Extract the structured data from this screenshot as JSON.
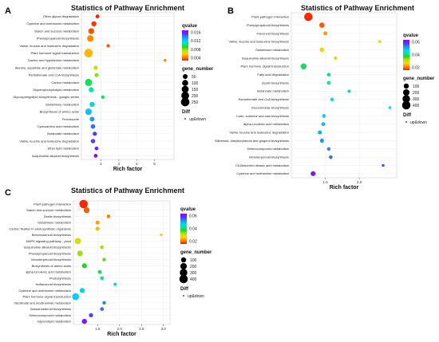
{
  "chart_data": [
    {
      "panel_label": "A",
      "type": "scatter",
      "title": "Statistics of Pathway Enrichment",
      "xlabel": "Rich factor",
      "ylabel": "",
      "x_ticks": [
        "2",
        "3",
        "4",
        "5"
      ],
      "xlim": [
        0.9,
        6.1
      ],
      "qvalue_title": "qvalue",
      "qvalue_range": [
        0.001,
        0.017
      ],
      "qvalue_ticks": [
        "0.016",
        "0.012",
        "0.008",
        "0.004"
      ],
      "size_title": "gene_number",
      "size_range": [
        0,
        260
      ],
      "size_legend": [
        "50",
        "100",
        "150",
        "200",
        "250"
      ],
      "diff_title": "Diff",
      "diff_label": "up&down",
      "categories": [
        "Other glycan degradation",
        "Cysteine and methionine metabolism",
        "Starch and sucrose metabolism",
        "Phenylpropanoid biosynthesis",
        "Valine, leucine and isoleucine degradation",
        "Plant hormone signal transduction",
        "Taurine and hypotaurine metabolism",
        "Alanine, aspartate and glutamate metabolism",
        "Pantothenate and CoA biosynthesis",
        "Carbon metabolism",
        "Glycerophospholipid metabolism",
        "Glycosphingolipid biosynthesis - ganglio series",
        "Glutathione metabolism",
        "Biosynthesis of amino acids",
        "Peroxisome",
        "Cyanoamino acid metabolism",
        "Butanoate metabolism",
        "Valine, leucine and isoleucine degradation",
        "Ether lipid metabolism",
        "Isoquinoline alkaloid biosynthesis"
      ],
      "points": [
        {
          "x": 1.8,
          "size": 20,
          "q": 0.001
        },
        {
          "x": 1.6,
          "size": 60,
          "q": 0.0015
        },
        {
          "x": 1.45,
          "size": 90,
          "q": 0.002
        },
        {
          "x": 1.4,
          "size": 120,
          "q": 0.003
        },
        {
          "x": 2.4,
          "size": 10,
          "q": 0.002
        },
        {
          "x": 1.3,
          "size": 250,
          "q": 0.004
        },
        {
          "x": 5.6,
          "size": 5,
          "q": 0.003
        },
        {
          "x": 1.7,
          "size": 30,
          "q": 0.006
        },
        {
          "x": 1.75,
          "size": 25,
          "q": 0.007
        },
        {
          "x": 1.3,
          "size": 160,
          "q": 0.009
        },
        {
          "x": 1.45,
          "size": 50,
          "q": 0.01
        },
        {
          "x": 2.1,
          "size": 15,
          "q": 0.009
        },
        {
          "x": 1.5,
          "size": 60,
          "q": 0.011
        },
        {
          "x": 1.3,
          "size": 120,
          "q": 0.012
        },
        {
          "x": 1.5,
          "size": 50,
          "q": 0.013
        },
        {
          "x": 1.55,
          "size": 40,
          "q": 0.014
        },
        {
          "x": 1.65,
          "size": 30,
          "q": 0.015
        },
        {
          "x": 1.55,
          "size": 35,
          "q": 0.015
        },
        {
          "x": 1.75,
          "size": 20,
          "q": 0.016
        },
        {
          "x": 1.7,
          "size": 20,
          "q": 0.017
        }
      ]
    },
    {
      "panel_label": "B",
      "type": "scatter",
      "title": "Statistics of Pathway Enrichment",
      "xlabel": "Rich factor",
      "ylabel": "",
      "x_ticks": [
        "1.5",
        "2.0"
      ],
      "xlim": [
        1.0,
        2.55
      ],
      "qvalue_title": "qvalue",
      "qvalue_range": [
        0.005,
        0.075
      ],
      "qvalue_ticks": [
        "0.06",
        "0.04",
        "0.02"
      ],
      "size_title": "gene_number",
      "size_range": [
        0,
        430
      ],
      "size_legend": [
        "100",
        "200",
        "300",
        "400"
      ],
      "diff_title": "Diff",
      "diff_label": "up&down",
      "categories": [
        "Plant-pathogen interaction",
        "Phenylpropanoid biosynthesis",
        "Flavonoid biosynthesis",
        "Valine, leucine and isoleucine biosynthesis",
        "Glutathione metabolism",
        "Isoquinoline alkaloid biosynthesis",
        "Plant hormone signal transduction",
        "Fatty acid degradation",
        "Zeatin biosynthesis",
        "Butanoate metabolism",
        "Pantothenate and CoA biosynthesis",
        "Glucosinolate biosynthesis",
        "Cutin, suberine and wax biosynthesis",
        "alpha-Linolenic acid metabolism",
        "Valine, leucine and isoleucine degradation",
        "Stilbenoid, diarylheptanoid and gingerol biosynthesis",
        "Selenocompound metabolism",
        "Monoterpenoid biosynthesis",
        "C5-Branched dibasic acid metabolism",
        "Cysteine and methionine metabolism"
      ],
      "points": [
        {
          "x": 1.25,
          "size": 400,
          "q": 0.006
        },
        {
          "x": 1.45,
          "size": 110,
          "q": 0.01
        },
        {
          "x": 1.5,
          "size": 40,
          "q": 0.015
        },
        {
          "x": 2.3,
          "size": 10,
          "q": 0.02
        },
        {
          "x": 1.45,
          "size": 60,
          "q": 0.022
        },
        {
          "x": 1.65,
          "size": 20,
          "q": 0.026
        },
        {
          "x": 1.18,
          "size": 160,
          "q": 0.04
        },
        {
          "x": 1.55,
          "size": 30,
          "q": 0.042
        },
        {
          "x": 1.55,
          "size": 35,
          "q": 0.044
        },
        {
          "x": 1.85,
          "size": 15,
          "q": 0.046
        },
        {
          "x": 1.6,
          "size": 25,
          "q": 0.048
        },
        {
          "x": 2.45,
          "size": 8,
          "q": 0.05
        },
        {
          "x": 1.48,
          "size": 30,
          "q": 0.052
        },
        {
          "x": 1.47,
          "size": 35,
          "q": 0.054
        },
        {
          "x": 1.42,
          "size": 40,
          "q": 0.056
        },
        {
          "x": 1.45,
          "size": 45,
          "q": 0.058
        },
        {
          "x": 1.55,
          "size": 25,
          "q": 0.06
        },
        {
          "x": 1.58,
          "size": 30,
          "q": 0.062
        },
        {
          "x": 2.35,
          "size": 8,
          "q": 0.064
        },
        {
          "x": 1.32,
          "size": 90,
          "q": 0.07
        }
      ]
    },
    {
      "panel_label": "C",
      "type": "scatter",
      "title": "Statistics of Pathway Enrichment",
      "xlabel": "Rich factor",
      "ylabel": "",
      "x_ticks": [
        "1.5",
        "2.0",
        "2.5",
        "3.0"
      ],
      "xlim": [
        0.95,
        3.15
      ],
      "qvalue_title": "qvalue",
      "qvalue_range": [
        0.005,
        0.075
      ],
      "qvalue_ticks": [
        "0.06",
        "0.04",
        "0.02"
      ],
      "size_title": "gene_number",
      "size_range": [
        0,
        430
      ],
      "size_legend": [
        "100",
        "200",
        "300",
        "400"
      ],
      "diff_title": "Diff",
      "diff_label": "up&down",
      "categories": [
        "Plant-pathogen interaction",
        "Starch and sucrose metabolism",
        "Zeatin biosynthesis",
        "Glutathione metabolism",
        "Carbon fixation in photosynthetic organisms",
        "Benzoxazinoid biosynthesis",
        "MAPK signaling pathway - plant",
        "Isoquinoline alkaloid biosynthesis",
        "Phenylpropanoid biosynthesis",
        "Monoterpenoid biosynthesis",
        "Biosynthesis of amino acids",
        "alpha-Linolenic acid metabolism",
        "Photosynthesis",
        "Isoflavonoid biosynthesis",
        "Cysteine and methionine metabolism",
        "Plant hormone signal transduction",
        "Nicotinate and nicotinamide metabolism",
        "Brassinosteroid biosynthesis",
        "Selenocompound metabolism",
        "Glycerolipid metabolism"
      ],
      "points": [
        {
          "x": 1.18,
          "size": 400,
          "q": 0.006
        },
        {
          "x": 1.25,
          "size": 150,
          "q": 0.01
        },
        {
          "x": 1.75,
          "size": 30,
          "q": 0.013
        },
        {
          "x": 1.5,
          "size": 45,
          "q": 0.016
        },
        {
          "x": 1.5,
          "size": 40,
          "q": 0.018
        },
        {
          "x": 2.95,
          "size": 5,
          "q": 0.02
        },
        {
          "x": 1.05,
          "size": 180,
          "q": 0.025
        },
        {
          "x": 1.6,
          "size": 25,
          "q": 0.03
        },
        {
          "x": 1.1,
          "size": 130,
          "q": 0.03
        },
        {
          "x": 1.65,
          "size": 25,
          "q": 0.033
        },
        {
          "x": 1.2,
          "size": 90,
          "q": 0.036
        },
        {
          "x": 1.55,
          "size": 35,
          "q": 0.04
        },
        {
          "x": 1.6,
          "size": 30,
          "q": 0.044
        },
        {
          "x": 1.9,
          "size": 15,
          "q": 0.047
        },
        {
          "x": 1.15,
          "size": 90,
          "q": 0.05
        },
        {
          "x": 1.0,
          "size": 230,
          "q": 0.052
        },
        {
          "x": 1.65,
          "size": 25,
          "q": 0.06
        },
        {
          "x": 1.6,
          "size": 30,
          "q": 0.063
        },
        {
          "x": 1.35,
          "size": 50,
          "q": 0.066
        },
        {
          "x": 1.2,
          "size": 100,
          "q": 0.07
        }
      ]
    }
  ]
}
